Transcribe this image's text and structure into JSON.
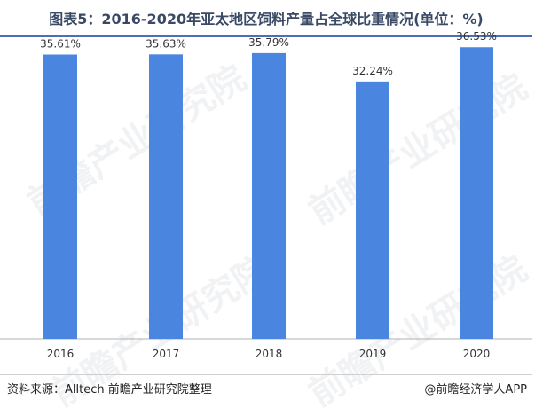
{
  "chart_data": {
    "type": "bar",
    "title": "图表5：2016-2020年亚太地区饲料产量占全球比重情况(单位：%)",
    "categories": [
      "2016",
      "2017",
      "2018",
      "2019",
      "2020"
    ],
    "values": [
      35.61,
      35.63,
      35.79,
      32.24,
      36.53
    ],
    "value_labels": [
      "35.61%",
      "35.63%",
      "35.79%",
      "32.24%",
      "36.53%"
    ],
    "xlabel": "",
    "ylabel": "",
    "ylim": [
      0,
      40
    ],
    "grid": false,
    "bar_color": "#4a86e0",
    "axis_color": "#b0b0b0"
  },
  "footer": {
    "source": "资料来源：Alltech 前瞻产业研究院整理",
    "brand": "@前瞻经济学人APP"
  },
  "watermark": {
    "text": "前瞻产业研究院"
  },
  "colors": {
    "title": "#3a4a66",
    "rule": "#4a6fb5"
  }
}
